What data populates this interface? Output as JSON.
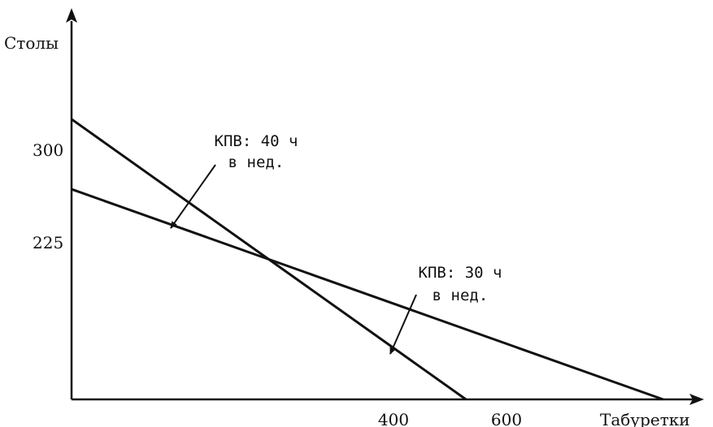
{
  "chart_data": {
    "type": "line",
    "xlabel": "Табуретки",
    "ylabel": "Столы",
    "xlim": [
      0,
      630
    ],
    "ylim": [
      0,
      405
    ],
    "x_ticks": [
      "400",
      "600"
    ],
    "y_ticks": [
      "300",
      "225"
    ],
    "series": [
      {
        "points": [
          [
            0,
            300
          ],
          [
            400,
            0
          ]
        ]
      },
      {
        "points": [
          [
            0,
            225
          ],
          [
            600,
            0
          ]
        ]
      }
    ],
    "annotations": [
      {
        "lines": [
          "КПВ: 40 ч",
          "в нед."
        ],
        "target_series": 0
      },
      {
        "lines": [
          "КПВ: 30 ч",
          "в нед."
        ],
        "target_series": 1
      }
    ],
    "grid": false,
    "colors": {
      "line": "#111111",
      "background": "#ffffff"
    }
  }
}
